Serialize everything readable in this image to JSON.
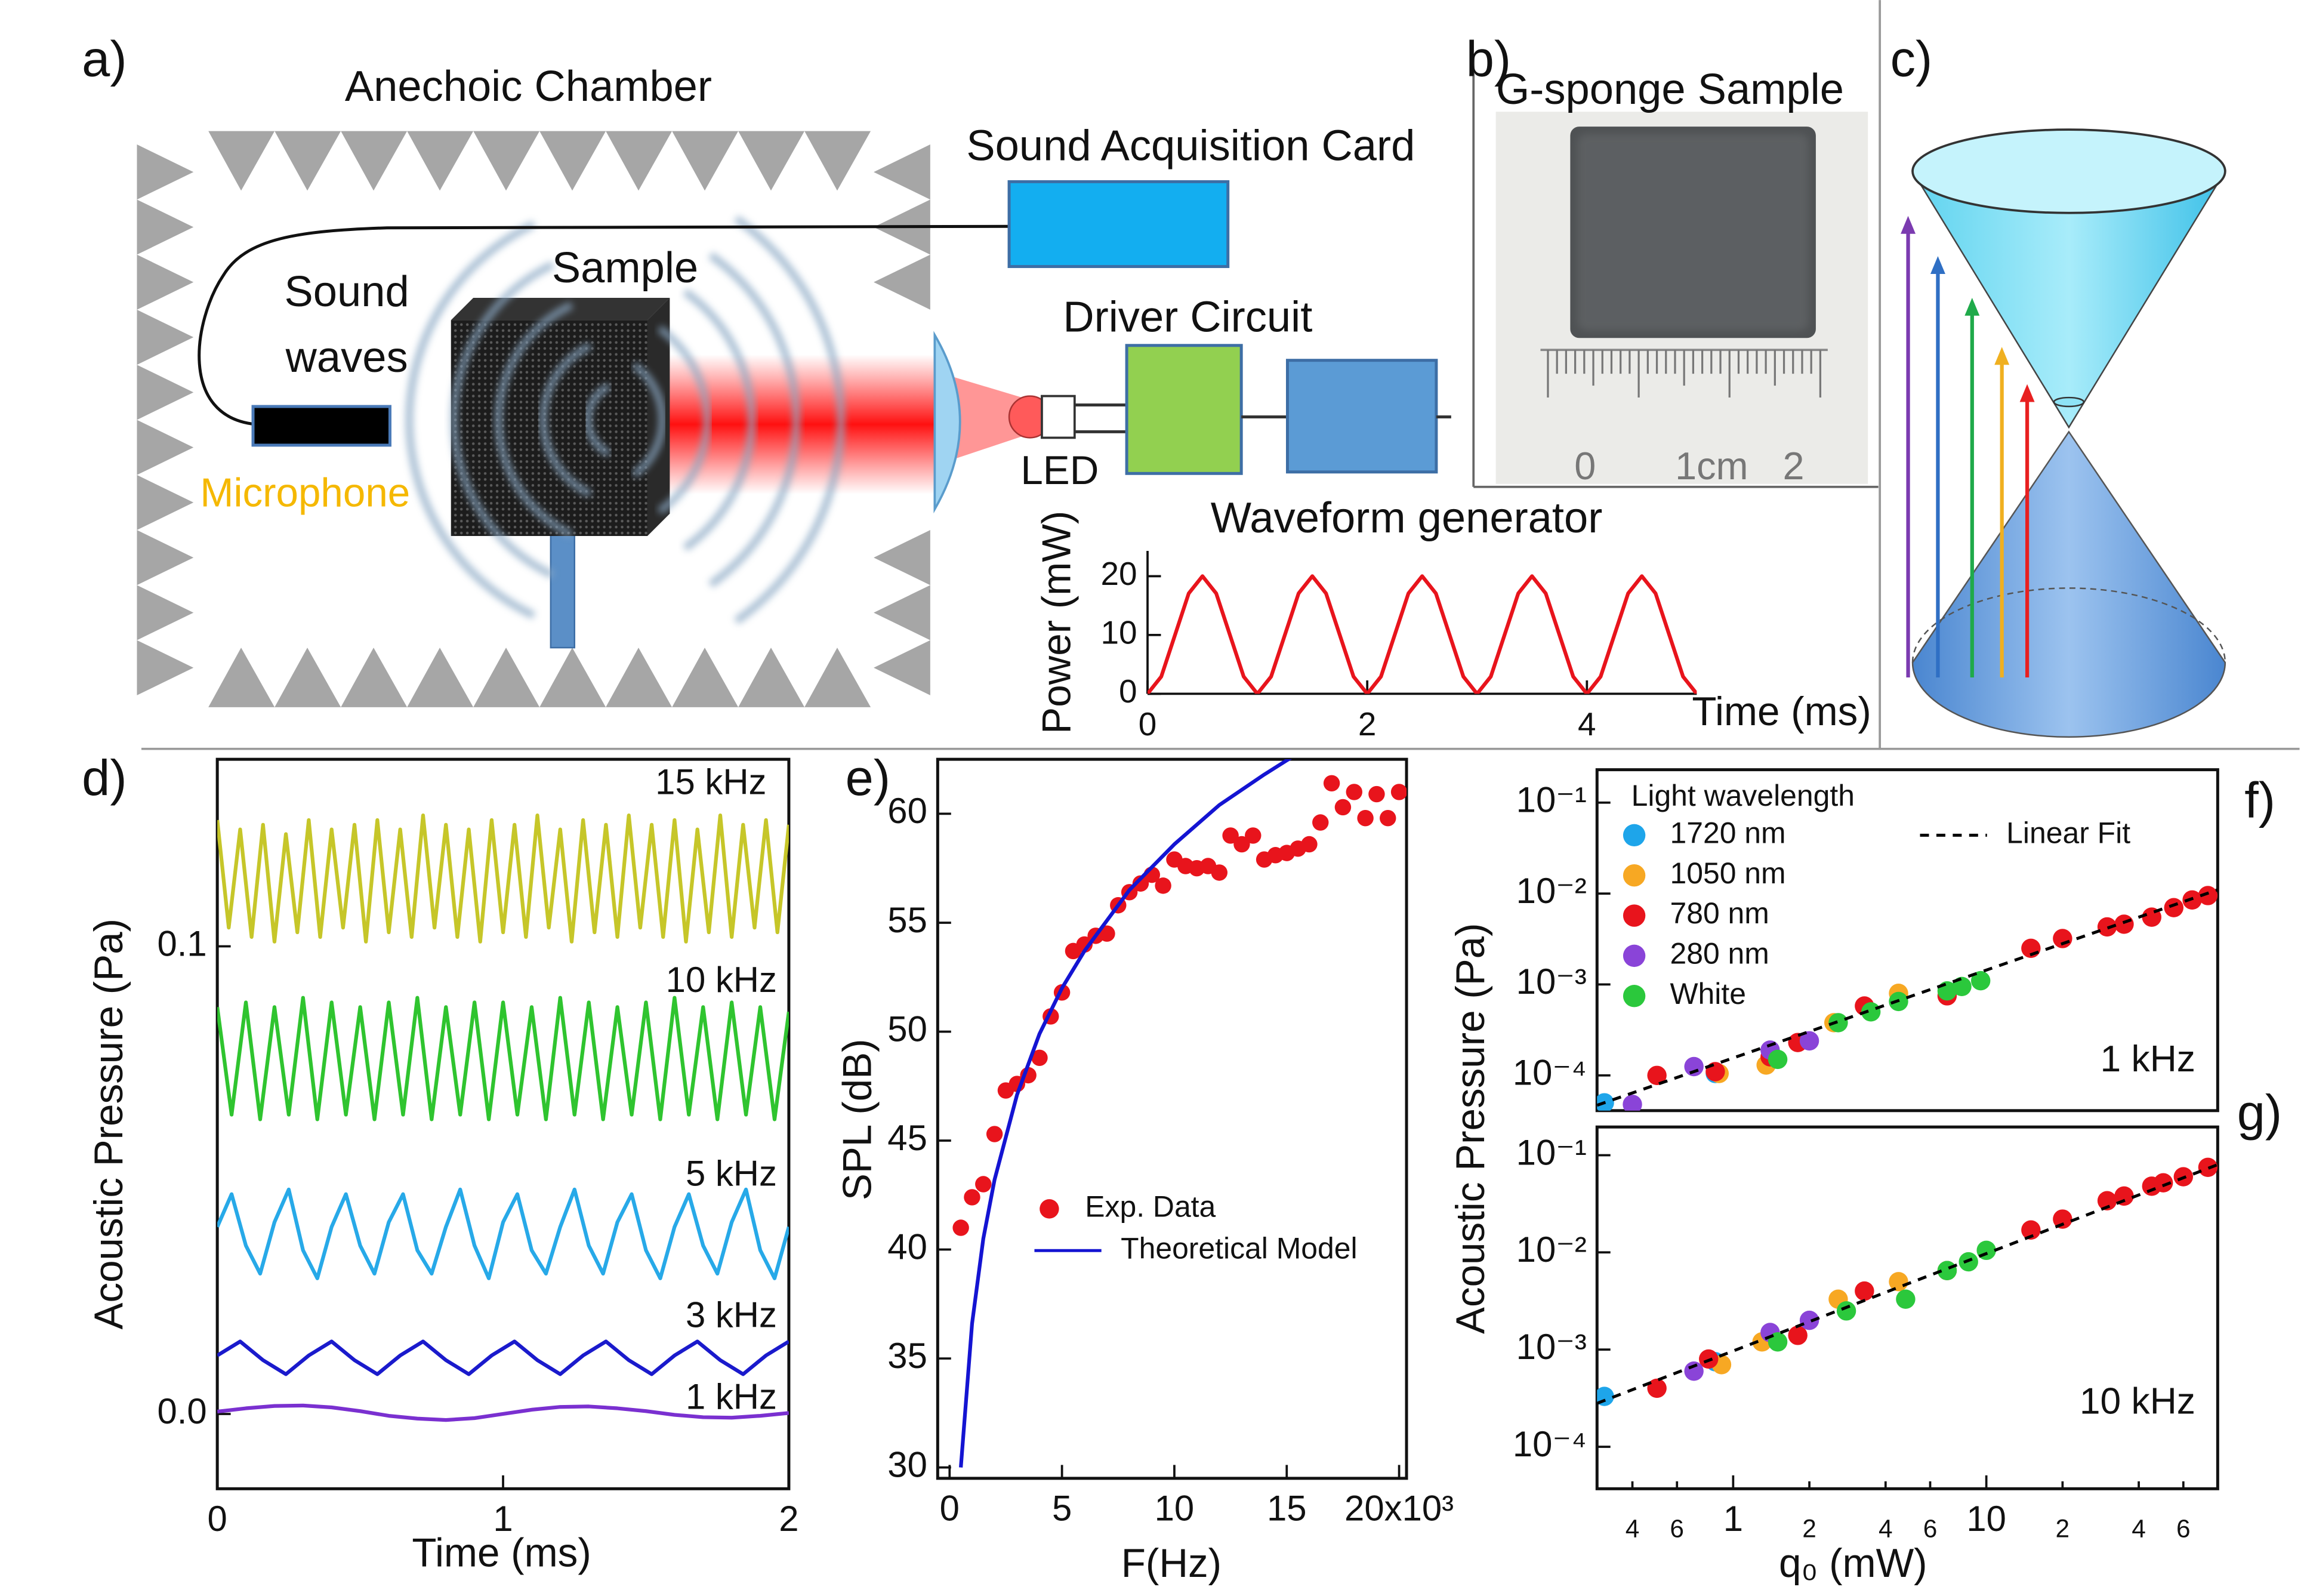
{
  "panel_labels": [
    "a)",
    "b)",
    "c)",
    "d)",
    "e)",
    "f)",
    "g)"
  ],
  "diagram": {
    "anechoic_chamber": "Anechoic Chamber",
    "sound_acquisition_card": "Sound Acquisition Card",
    "sound": "Sound",
    "waves": "waves",
    "sample": "Sample",
    "driver_circuit": "Driver Circuit",
    "microphone": "Microphone",
    "led": "LED",
    "photo_title": "G-sponge Sample",
    "ruler_labels": [
      "0",
      "1cm",
      "2"
    ]
  },
  "chart_data": [
    {
      "type": "line",
      "title": "Waveform generator",
      "x_label": "Time (ms)",
      "y_label": "Power (mW)",
      "color": "#e8141c",
      "x": [
        0,
        0.125,
        0.25,
        0.375,
        0.5,
        0.625,
        0.75,
        0.875,
        1,
        1.125,
        1.25,
        1.375,
        1.5,
        1.625,
        1.75,
        1.875,
        2,
        2.125,
        2.25,
        2.375,
        2.5,
        2.625,
        2.75,
        2.875,
        3,
        3.125,
        3.25,
        3.375,
        3.5,
        3.625,
        3.75,
        3.875,
        4,
        4.125,
        4.25,
        4.375,
        4.5,
        4.625,
        4.75,
        4.875,
        5
      ],
      "values": [
        0,
        2.93,
        10,
        17.07,
        20,
        17.07,
        10,
        2.93,
        0,
        2.93,
        10,
        17.07,
        20,
        17.07,
        10,
        2.93,
        0,
        2.93,
        10,
        17.07,
        20,
        17.07,
        10,
        2.93,
        0,
        2.93,
        10,
        17.07,
        20,
        17.07,
        10,
        2.93,
        0,
        2.93,
        10,
        17.07,
        20,
        17.07,
        10,
        2.93,
        0
      ],
      "xlim": [
        0,
        5
      ],
      "ylim": [
        0,
        24.3
      ],
      "xticks": [
        0,
        2,
        4
      ],
      "yticks": [
        0,
        10,
        20
      ]
    },
    {
      "type": "line",
      "x_label": "Time (ms)",
      "y_label": "Acoustic Pressure  (Pa)",
      "xlim": [
        0,
        2
      ],
      "ylim": [
        -0.016,
        0.14
      ],
      "xticks": [
        0,
        1,
        2
      ],
      "yticks": [
        {
          "value": 0,
          "label": "0.0"
        },
        0.1
      ],
      "series": [
        {
          "name": "15 kHz",
          "color": "#c6c629",
          "x": [
            0,
            0.04,
            0.08,
            0.12,
            0.16,
            0.2,
            0.24,
            0.28,
            0.32,
            0.36,
            0.4,
            0.44,
            0.48,
            0.52,
            0.56,
            0.6,
            0.64,
            0.68,
            0.72,
            0.76,
            0.8,
            0.84,
            0.88,
            0.92,
            0.96,
            1,
            1.04,
            1.08,
            1.12,
            1.16,
            1.2,
            1.24,
            1.28,
            1.32,
            1.36,
            1.4,
            1.44,
            1.48,
            1.52,
            1.56,
            1.6,
            1.64,
            1.68,
            1.72,
            1.76,
            1.8,
            1.84,
            1.88,
            1.92,
            1.96,
            2
          ],
          "values": [
            0.127,
            0.104,
            0.125,
            0.102,
            0.126,
            0.101,
            0.124,
            0.103,
            0.127,
            0.102,
            0.125,
            0.104,
            0.126,
            0.101,
            0.127,
            0.103,
            0.125,
            0.102,
            0.128,
            0.104,
            0.126,
            0.102,
            0.125,
            0.101,
            0.127,
            0.103,
            0.126,
            0.102,
            0.128,
            0.104,
            0.125,
            0.101,
            0.127,
            0.103,
            0.126,
            0.102,
            0.128,
            0.104,
            0.126,
            0.102,
            0.127,
            0.101,
            0.125,
            0.103,
            0.128,
            0.102,
            0.126,
            0.104,
            0.127,
            0.103,
            0.126
          ]
        },
        {
          "name": "10 kHz",
          "color": "#2fc42f",
          "x": [
            0,
            0.05,
            0.1,
            0.15,
            0.2,
            0.25,
            0.3,
            0.35,
            0.4,
            0.45,
            0.5,
            0.55,
            0.6,
            0.65,
            0.7,
            0.75,
            0.8,
            0.85,
            0.9,
            0.95,
            1,
            1.05,
            1.1,
            1.15,
            1.2,
            1.25,
            1.3,
            1.35,
            1.4,
            1.45,
            1.5,
            1.55,
            1.6,
            1.65,
            1.7,
            1.75,
            1.8,
            1.85,
            1.9,
            1.95,
            2
          ],
          "values": [
            0.087,
            0.064,
            0.088,
            0.063,
            0.087,
            0.064,
            0.089,
            0.063,
            0.088,
            0.064,
            0.087,
            0.063,
            0.088,
            0.064,
            0.089,
            0.063,
            0.087,
            0.064,
            0.088,
            0.063,
            0.088,
            0.064,
            0.087,
            0.063,
            0.089,
            0.064,
            0.088,
            0.063,
            0.087,
            0.064,
            0.088,
            0.063,
            0.089,
            0.064,
            0.087,
            0.063,
            0.088,
            0.064,
            0.087,
            0.063,
            0.086
          ]
        },
        {
          "name": "5 kHz",
          "color": "#27a9e8",
          "x": [
            0,
            0.05,
            0.1,
            0.15,
            0.2,
            0.25,
            0.3,
            0.35,
            0.4,
            0.45,
            0.5,
            0.55,
            0.6,
            0.65,
            0.7,
            0.75,
            0.8,
            0.85,
            0.9,
            0.95,
            1,
            1.05,
            1.1,
            1.15,
            1.2,
            1.25,
            1.3,
            1.35,
            1.4,
            1.45,
            1.5,
            1.55,
            1.6,
            1.65,
            1.7,
            1.75,
            1.8,
            1.85,
            1.9,
            1.95,
            2
          ],
          "values": [
            0.04,
            0.047,
            0.036,
            0.03,
            0.041,
            0.048,
            0.035,
            0.029,
            0.04,
            0.047,
            0.036,
            0.03,
            0.041,
            0.047,
            0.035,
            0.03,
            0.04,
            0.048,
            0.036,
            0.029,
            0.041,
            0.047,
            0.035,
            0.03,
            0.04,
            0.048,
            0.036,
            0.03,
            0.041,
            0.047,
            0.035,
            0.029,
            0.04,
            0.047,
            0.036,
            0.03,
            0.041,
            0.048,
            0.035,
            0.029,
            0.04
          ]
        },
        {
          "name": "3 kHz",
          "color": "#1a1acc",
          "x": [
            0,
            0.08,
            0.16,
            0.24,
            0.32,
            0.4,
            0.48,
            0.56,
            0.64,
            0.72,
            0.8,
            0.88,
            0.96,
            1.04,
            1.12,
            1.2,
            1.28,
            1.36,
            1.44,
            1.52,
            1.6,
            1.68,
            1.76,
            1.84,
            1.92,
            2
          ],
          "values": [
            0.0125,
            0.0155,
            0.0115,
            0.0085,
            0.0125,
            0.0155,
            0.0115,
            0.0085,
            0.0125,
            0.0155,
            0.0115,
            0.0085,
            0.0125,
            0.0155,
            0.0115,
            0.0085,
            0.0125,
            0.0155,
            0.0115,
            0.0085,
            0.0125,
            0.0155,
            0.0115,
            0.0085,
            0.0125,
            0.0155
          ]
        },
        {
          "name": "1 kHz",
          "color": "#7a30d0",
          "x": [
            0,
            0.1,
            0.2,
            0.3,
            0.4,
            0.5,
            0.6,
            0.7,
            0.8,
            0.9,
            1,
            1.1,
            1.2,
            1.3,
            1.4,
            1.5,
            1.6,
            1.7,
            1.8,
            1.9,
            2
          ],
          "values": [
            0.0005,
            0.0012,
            0.0017,
            0.0018,
            0.0014,
            0.0006,
            -0.0004,
            -0.001,
            -0.0013,
            -0.0009,
            0,
            0.0009,
            0.0015,
            0.0016,
            0.0012,
            0.0006,
            -0.0002,
            -0.0007,
            -0.0008,
            -0.0004,
            0.0002
          ]
        }
      ]
    },
    {
      "type": "scatter",
      "x_label": "F(Hz)",
      "y_label": "SPL (dB)",
      "xlim": [
        -530,
        20330
      ],
      "ylim": [
        29.5,
        62.5
      ],
      "xticks": [
        0,
        {
          "value": 5000,
          "label": "5"
        },
        {
          "value": 10000,
          "label": "10"
        },
        {
          "value": 15000,
          "label": "15"
        },
        {
          "value": 20000,
          "label": "20x10³"
        }
      ],
      "yticks": [
        30,
        35,
        40,
        45,
        50,
        55,
        60
      ],
      "series": [
        {
          "name": "Exp. Data",
          "color": "#e8141c",
          "x": [
            500,
            1000,
            1500,
            2000,
            2500,
            3000,
            3500,
            4000,
            4500,
            5000,
            5500,
            6000,
            6500,
            7000,
            7500,
            8000,
            8500,
            9000,
            9500,
            10000,
            10500,
            11000,
            11500,
            12000,
            12500,
            13000,
            13500,
            14000,
            14500,
            15000,
            15500,
            16000,
            16500,
            17000,
            17500,
            18000,
            18500,
            19000,
            19500,
            20000
          ],
          "values": [
            41,
            42.4,
            43,
            45.3,
            47.3,
            47.6,
            48,
            48.8,
            50.7,
            51.8,
            53.7,
            54,
            54.4,
            54.5,
            55.8,
            56.4,
            56.8,
            57.2,
            56.7,
            57.9,
            57.6,
            57.5,
            57.6,
            57.3,
            59,
            58.6,
            59,
            57.9,
            58.1,
            58.2,
            58.4,
            58.6,
            59.6,
            61.4,
            60.3,
            61,
            59.8,
            60.9,
            59.8,
            61
          ]
        },
        {
          "name": "Theoretical Model",
          "color": "#1414d2",
          "type": "line",
          "x": [
            500,
            1000,
            1500,
            2000,
            3000,
            4000,
            5000,
            6000,
            8000,
            10000,
            12000,
            14000,
            16000
          ],
          "values": [
            30,
            36.6,
            40.5,
            43.2,
            47.1,
            49.9,
            52,
            53.7,
            56.5,
            58.6,
            60.4,
            61.8,
            63.1
          ]
        }
      ]
    },
    {
      "type": "scatter",
      "xlog": true,
      "ylog": true,
      "y_label": "Acoustic Pressure (Pa)",
      "legend_title": "Light wavelength",
      "annotation": "1 kHz",
      "xlim": [
        0.29,
        82
      ],
      "ylim": [
        4.1e-05,
        0.23
      ],
      "yticks": [
        {
          "value": 0.1,
          "label": "10⁻¹"
        },
        {
          "value": 0.01,
          "label": "10⁻²"
        },
        {
          "value": 0.001,
          "label": "10⁻³"
        },
        {
          "value": 0.0001,
          "label": "10⁻⁴"
        }
      ],
      "series": [
        {
          "name": "1720 nm",
          "color": "#1ea5ea",
          "x": [
            0.31,
            0.85
          ],
          "values": [
            5e-05,
            0.000105
          ]
        },
        {
          "name": "1050 nm",
          "color": "#f7a823",
          "x": [
            0.88,
            1.35,
            2.5,
            4.5
          ],
          "values": [
            0.000105,
            0.00013,
            0.00038,
            0.0008
          ]
        },
        {
          "name": "780 nm",
          "color": "#e8141c",
          "x": [
            0.5,
            0.85,
            1.4,
            1.8,
            3.3,
            7,
            15,
            20,
            30,
            35,
            45,
            55,
            65,
            75
          ],
          "values": [
            0.0001,
            0.00011,
            0.00016,
            0.00023,
            0.00058,
            0.00075,
            0.0025,
            0.0032,
            0.0043,
            0.0046,
            0.0055,
            0.007,
            0.0085,
            0.0095
          ]
        },
        {
          "name": "280 nm",
          "color": "#8a44d8",
          "x": [
            0.4,
            0.7,
            1.4,
            2
          ],
          "values": [
            4.8e-05,
            0.000125,
            0.00019,
            0.00024
          ]
        },
        {
          "name": "White",
          "color": "#2bc83c",
          "x": [
            1.5,
            2.6,
            3.5,
            4.5,
            7,
            8,
            9.5
          ],
          "values": [
            0.00015,
            0.00038,
            0.0005,
            0.00065,
            0.00085,
            0.00095,
            0.0011
          ]
        },
        {
          "name": "Linear Fit",
          "color": "#000000",
          "type": "line",
          "style": "dashed",
          "x": [
            0.29,
            82
          ],
          "values": [
            4.7e-05,
            0.011
          ]
        }
      ]
    },
    {
      "type": "scatter",
      "xlog": true,
      "ylog": true,
      "x_label": "q₀ (mW)",
      "annotation": "10 kHz",
      "xlim": [
        0.29,
        82
      ],
      "ylim": [
        3.7e-05,
        0.195
      ],
      "xticks": [
        {
          "value": 0.4,
          "label": "4"
        },
        {
          "value": 0.6,
          "label": "6"
        },
        1,
        2,
        4,
        6,
        10,
        {
          "value": 20,
          "label": "2"
        },
        {
          "value": 40,
          "label": "4"
        },
        {
          "value": 60,
          "label": "6"
        }
      ],
      "yticks": [
        {
          "value": 0.1,
          "label": "10⁻¹"
        },
        {
          "value": 0.01,
          "label": "10⁻²"
        },
        {
          "value": 0.001,
          "label": "10⁻³"
        },
        {
          "value": 0.0001,
          "label": "10⁻⁴"
        }
      ],
      "series": [
        {
          "color": "#1ea5ea",
          "x": [
            0.31,
            0.85
          ],
          "values": [
            0.00033,
            0.00075
          ]
        },
        {
          "color": "#f7a823",
          "x": [
            0.9,
            1.3,
            2.6,
            4.5
          ],
          "values": [
            0.0007,
            0.0012,
            0.0033,
            0.005
          ]
        },
        {
          "color": "#e8141c",
          "x": [
            0.5,
            0.8,
            1.8,
            3.3,
            7,
            15,
            20,
            30,
            35,
            45,
            50,
            60,
            75
          ],
          "values": [
            0.0004,
            0.0008,
            0.0014,
            0.004,
            0.0065,
            0.017,
            0.022,
            0.034,
            0.038,
            0.048,
            0.052,
            0.06,
            0.075
          ]
        },
        {
          "color": "#8a44d8",
          "x": [
            0.7,
            1.4,
            2
          ],
          "values": [
            0.0006,
            0.0015,
            0.002
          ]
        },
        {
          "color": "#2bc83c",
          "x": [
            1.5,
            2.8,
            4.8,
            7,
            8.5,
            10
          ],
          "values": [
            0.0012,
            0.0025,
            0.0033,
            0.0065,
            0.008,
            0.0105
          ]
        },
        {
          "color": "#000000",
          "type": "line",
          "style": "dashed",
          "x": [
            0.29,
            82
          ],
          "values": [
            0.00028,
            0.08
          ]
        }
      ]
    }
  ]
}
